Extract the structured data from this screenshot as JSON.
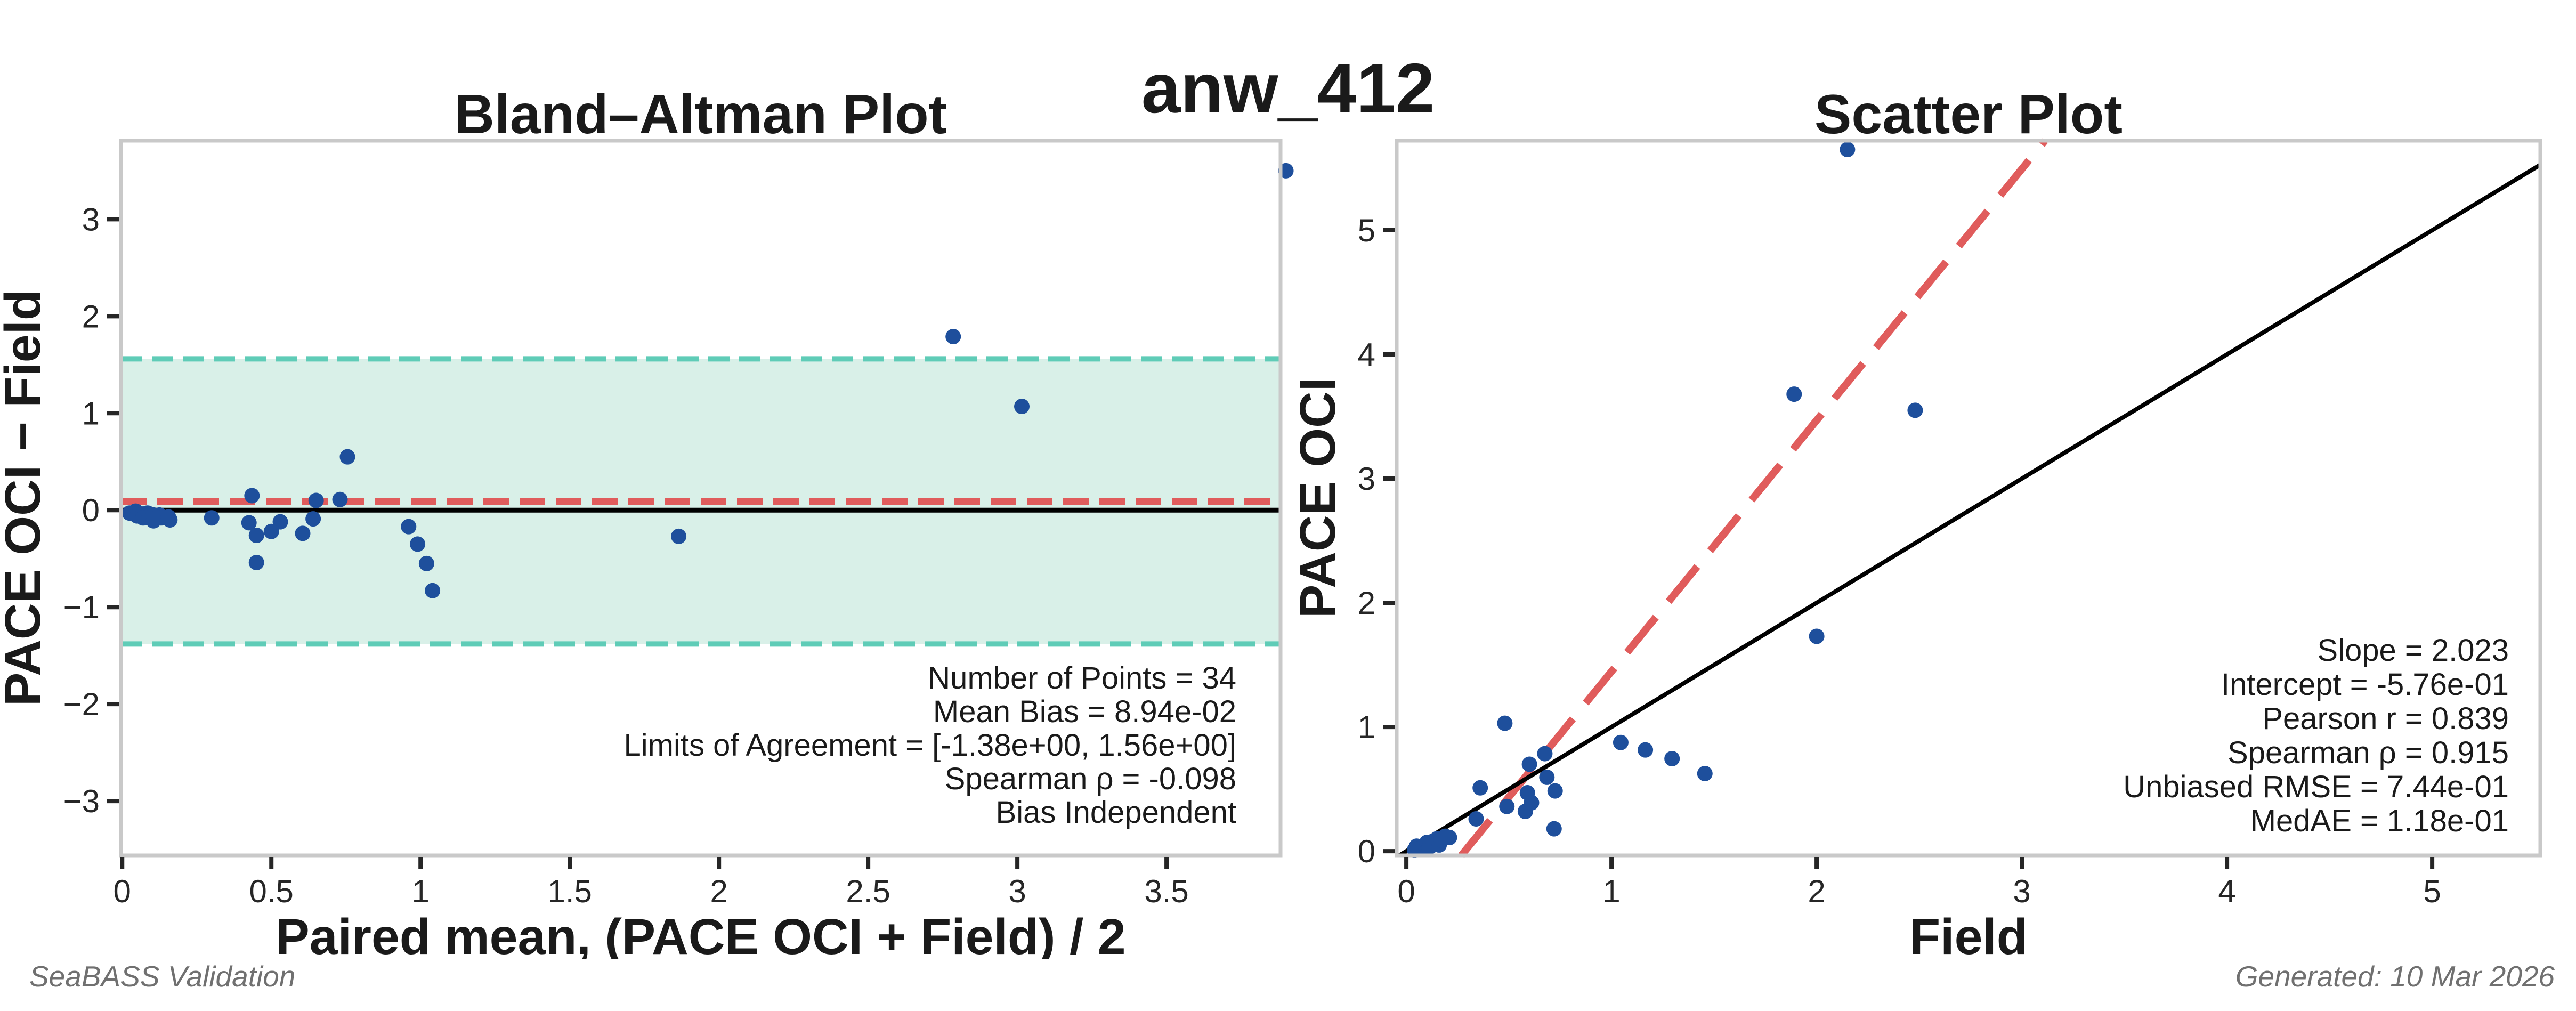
{
  "page": {
    "title": "anw_412",
    "footer_left": "SeaBASS Validation",
    "footer_right": "Generated: 10 Mar 2026",
    "colors": {
      "point": "#1e4f9c",
      "fit_line": "#e05c5c",
      "band_fill": "#d9f0e8",
      "band_edge": "#5fccb7",
      "zero_line": "#000000",
      "identity_line": "#000000",
      "frame": "#c9c9c9",
      "tick": "#262626",
      "text": "#1a1a1a",
      "footer_text": "#707070"
    }
  },
  "chart_data": [
    {
      "id": "bland-altman",
      "type": "scatter",
      "title": "Bland–Altman Plot",
      "xlabel": "Paired mean, (PACE OCI + Field) / 2",
      "ylabel": "PACE OCI − Field",
      "xlim": [
        -0.004,
        3.882
      ],
      "ylim": [
        -3.56,
        3.81
      ],
      "grid": false,
      "legend": null,
      "xticks": {
        "values": [
          0,
          0.5,
          1,
          1.5,
          2,
          2.5,
          3,
          3.5
        ],
        "labels": [
          "0",
          "0.5",
          "1",
          "1.5",
          "2",
          "2.5",
          "3",
          "3.5"
        ]
      },
      "yticks": {
        "values": [
          -3,
          -2,
          -1,
          0,
          1,
          2,
          3
        ],
        "labels": [
          "−3",
          "−2",
          "−1",
          "0",
          "1",
          "2",
          "3"
        ]
      },
      "reference_lines": {
        "zero": 0,
        "mean_bias": 0.0894
      },
      "loa_band": {
        "lower": -1.38,
        "upper": 1.56
      },
      "n_points": 34,
      "points": [
        [
          0.025,
          -0.03
        ],
        [
          0.045,
          -0.01
        ],
        [
          0.04,
          -0.04
        ],
        [
          0.05,
          -0.06
        ],
        [
          0.07,
          -0.04
        ],
        [
          0.085,
          -0.03
        ],
        [
          0.07,
          -0.08
        ],
        [
          0.09,
          -0.08
        ],
        [
          0.105,
          -0.05
        ],
        [
          0.125,
          -0.05
        ],
        [
          0.105,
          -0.11
        ],
        [
          0.13,
          -0.08
        ],
        [
          0.155,
          -0.07
        ],
        [
          0.16,
          -0.1
        ],
        [
          0.3,
          -0.08
        ],
        [
          0.435,
          0.15
        ],
        [
          0.755,
          0.55
        ],
        [
          0.425,
          -0.13
        ],
        [
          0.45,
          -0.26
        ],
        [
          0.53,
          -0.12
        ],
        [
          0.65,
          0.1
        ],
        [
          0.5,
          -0.22
        ],
        [
          0.73,
          0.11
        ],
        [
          0.64,
          -0.09
        ],
        [
          0.45,
          -0.54
        ],
        [
          0.605,
          -0.24
        ],
        [
          0.96,
          -0.17
        ],
        [
          0.99,
          -0.35
        ],
        [
          1.02,
          -0.55
        ],
        [
          1.04,
          -0.83
        ],
        [
          1.865,
          -0.27
        ],
        [
          2.785,
          1.79
        ],
        [
          3.9,
          3.5
        ],
        [
          3.015,
          1.07
        ]
      ],
      "stats_lines": [
        "Number of Points = 34",
        "Mean Bias = 8.94e-02",
        "Limits of Agreement = [-1.38e+00, 1.56e+00]",
        "Spearman ρ = -0.098",
        "Bias Independent"
      ]
    },
    {
      "id": "scatter",
      "type": "scatter",
      "title": "Scatter Plot",
      "xlabel": "Field",
      "ylabel": "PACE OCI",
      "xlim": [
        -0.047,
        5.527
      ],
      "ylim": [
        -0.034,
        5.721
      ],
      "grid": false,
      "legend": null,
      "xticks": {
        "values": [
          0,
          1,
          2,
          3,
          4,
          5
        ],
        "labels": [
          "0",
          "1",
          "2",
          "3",
          "4",
          "5"
        ]
      },
      "yticks": {
        "values": [
          0,
          1,
          2,
          3,
          4,
          5
        ],
        "labels": [
          "0",
          "1",
          "2",
          "3",
          "4",
          "5"
        ]
      },
      "identity_line": true,
      "regression": {
        "slope": 2.023,
        "intercept": -0.576
      },
      "n_points": 34,
      "points": [
        [
          0.04,
          0.01
        ],
        [
          0.05,
          0.04
        ],
        [
          0.06,
          0.02
        ],
        [
          0.08,
          0.02
        ],
        [
          0.09,
          0.05
        ],
        [
          0.1,
          0.07
        ],
        [
          0.11,
          0.03
        ],
        [
          0.13,
          0.05
        ],
        [
          0.13,
          0.08
        ],
        [
          0.15,
          0.1
        ],
        [
          0.16,
          0.05
        ],
        [
          0.17,
          0.09
        ],
        [
          0.19,
          0.12
        ],
        [
          0.21,
          0.11
        ],
        [
          0.34,
          0.26
        ],
        [
          0.36,
          0.51
        ],
        [
          0.48,
          1.03
        ],
        [
          0.49,
          0.36
        ],
        [
          0.58,
          0.32
        ],
        [
          0.59,
          0.47
        ],
        [
          0.6,
          0.7
        ],
        [
          0.61,
          0.39
        ],
        [
          0.675,
          0.785
        ],
        [
          0.685,
          0.595
        ],
        [
          0.72,
          0.18
        ],
        [
          0.725,
          0.485
        ],
        [
          1.045,
          0.875
        ],
        [
          1.165,
          0.815
        ],
        [
          1.295,
          0.745
        ],
        [
          1.455,
          0.625
        ],
        [
          2.0,
          1.73
        ],
        [
          1.89,
          3.68
        ],
        [
          2.15,
          5.65
        ],
        [
          2.48,
          3.55
        ]
      ],
      "stats_lines": [
        "Slope = 2.023",
        "Intercept = -5.76e-01",
        "Pearson r = 0.839",
        "Spearman ρ = 0.915",
        "Unbiased RMSE = 7.44e-01",
        "MedAE = 1.18e-01"
      ]
    }
  ]
}
